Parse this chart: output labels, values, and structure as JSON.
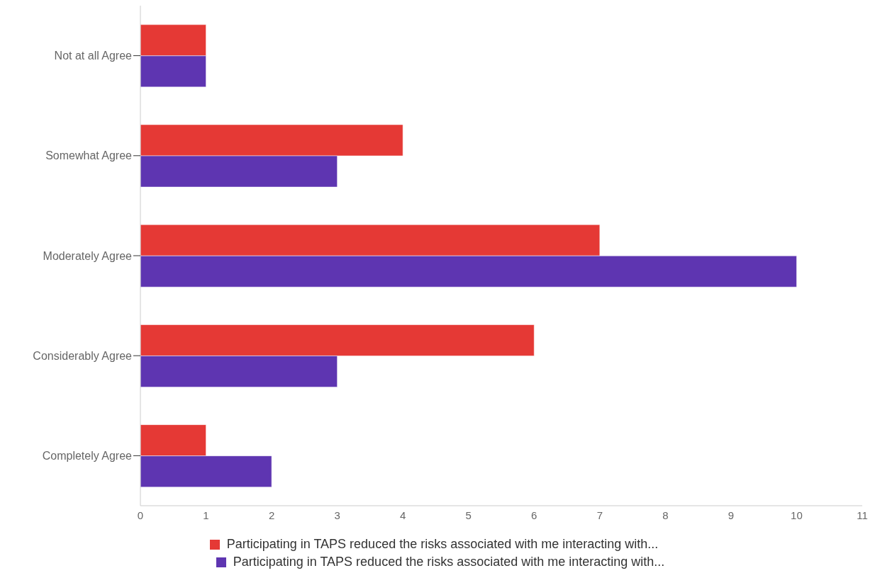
{
  "chart_data": {
    "type": "bar",
    "orientation": "horizontal",
    "categories": [
      "Not at all Agree",
      "Somewhat Agree",
      "Moderately Agree",
      "Considerably Agree",
      "Completely Agree"
    ],
    "series": [
      {
        "name": "Participating in TAPS reduced the risks associated with me interacting with...",
        "color": "#e53935",
        "values": [
          1,
          4,
          7,
          6,
          1
        ]
      },
      {
        "name": "Participating in TAPS reduced the risks associated with me interacting with...",
        "color": "#5e35b1",
        "values": [
          1,
          3,
          10,
          3,
          2
        ]
      }
    ],
    "xlim": [
      0,
      11
    ],
    "xticks": [
      0,
      1,
      2,
      3,
      4,
      5,
      6,
      7,
      8,
      9,
      10,
      11
    ],
    "grid": false,
    "legend": "bottom"
  }
}
